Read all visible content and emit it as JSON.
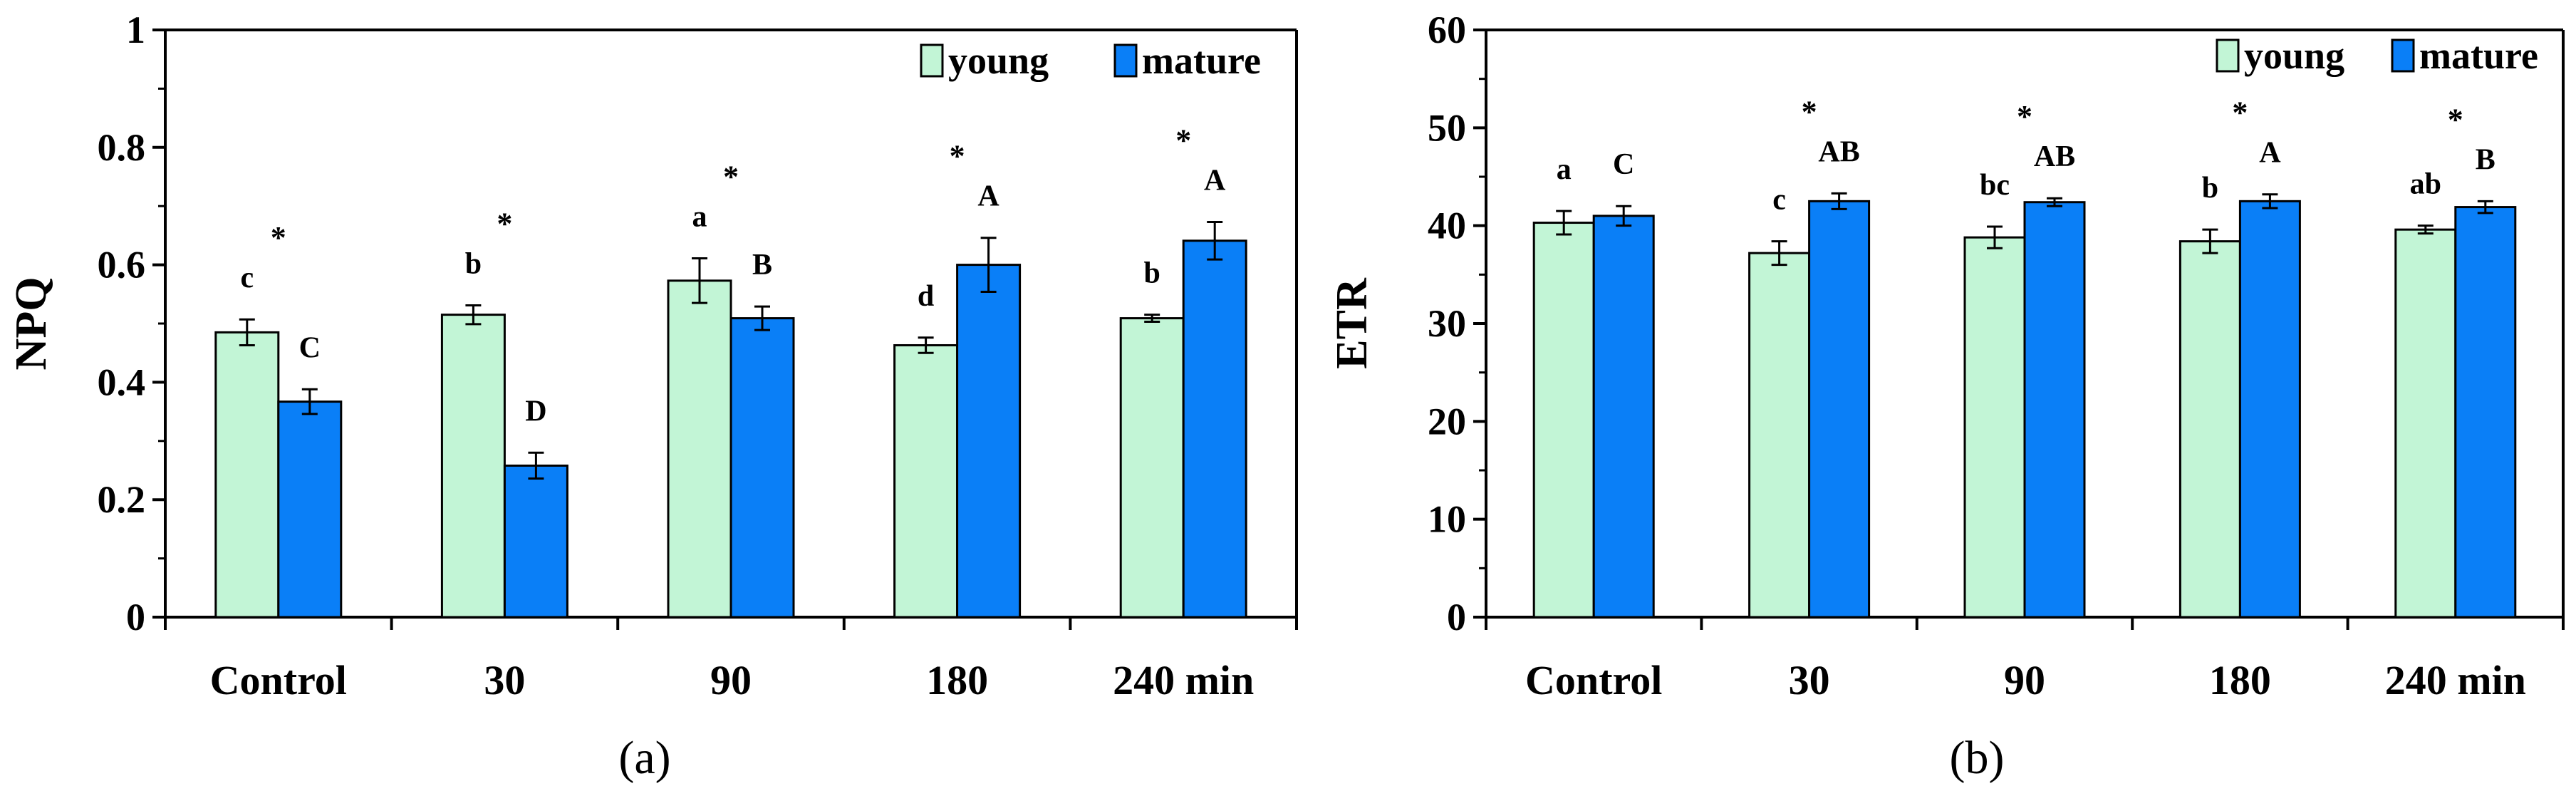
{
  "chart_data": [
    {
      "panel_label": "(a)",
      "type": "bar",
      "ylabel": "NPQ",
      "xlabel": "",
      "categories": [
        "Control",
        "30",
        "90",
        "180",
        "240 min"
      ],
      "ylim": [
        0,
        1
      ],
      "yticks": [
        "0",
        "0.2",
        "0.4",
        "0.6",
        "0.8",
        "1"
      ],
      "ytick_values": [
        0,
        0.2,
        0.4,
        0.6,
        0.8,
        1.0
      ],
      "minor_ticks": true,
      "legend_position": "top-right",
      "series": [
        {
          "name": "young",
          "color": "#c2f5d6",
          "values": [
            0.485,
            0.515,
            0.573,
            0.463,
            0.509
          ],
          "errors": [
            0.022,
            0.016,
            0.038,
            0.013,
            0.006
          ],
          "letters": [
            "c",
            "b",
            "a",
            "d",
            "b"
          ]
        },
        {
          "name": "mature",
          "color": "#0a7ff7",
          "values": [
            0.367,
            0.258,
            0.509,
            0.6,
            0.641
          ],
          "errors": [
            0.021,
            0.022,
            0.02,
            0.046,
            0.032
          ],
          "letters": [
            "C",
            "D",
            "B",
            "A",
            "A"
          ]
        }
      ],
      "significance": [
        "*",
        "*",
        "*",
        "*",
        "*"
      ]
    },
    {
      "panel_label": "(b)",
      "type": "bar",
      "ylabel": "ETR",
      "xlabel": "",
      "categories": [
        "Control",
        "30",
        "90",
        "180",
        "240 min"
      ],
      "ylim": [
        0,
        60
      ],
      "yticks": [
        "0",
        "10",
        "20",
        "30",
        "40",
        "50",
        "60"
      ],
      "ytick_values": [
        0,
        10,
        20,
        30,
        40,
        50,
        60
      ],
      "minor_ticks": true,
      "legend_position": "top-right",
      "series": [
        {
          "name": "young",
          "color": "#c2f5d6",
          "values": [
            40.3,
            37.2,
            38.8,
            38.4,
            39.6
          ],
          "errors": [
            1.2,
            1.2,
            1.1,
            1.2,
            0.4
          ],
          "letters": [
            "a",
            "c",
            "bc",
            "b",
            "ab"
          ]
        },
        {
          "name": "mature",
          "color": "#0a7ff7",
          "values": [
            41.0,
            42.5,
            42.4,
            42.5,
            41.9
          ],
          "errors": [
            1.0,
            0.8,
            0.4,
            0.7,
            0.6
          ],
          "letters": [
            "C",
            "AB",
            "AB",
            "A",
            "B"
          ]
        }
      ],
      "significance": [
        "",
        "*",
        "*",
        "*",
        "*"
      ]
    }
  ]
}
